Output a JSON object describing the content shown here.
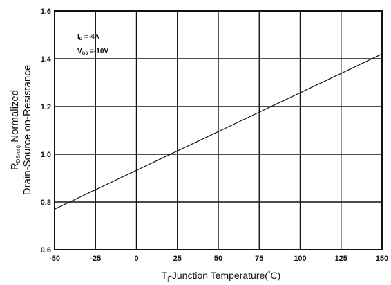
{
  "chart_data": {
    "type": "line",
    "xlabel_prefix": "T",
    "xlabel_subscript": "j",
    "xlabel_rest": "-Junction Temperature(",
    "xlabel_degree": "°",
    "xlabel_unit": "C)",
    "ylabel_line1_prefix": "R",
    "ylabel_line1_subscript": "DS(on)",
    "ylabel_line1_rest": " Normalized",
    "ylabel_line2": "Drain-Source on-Resistance",
    "xlim": [
      -50,
      150
    ],
    "ylim": [
      0.6,
      1.6
    ],
    "x_ticks": [
      -50,
      -25,
      0,
      25,
      50,
      75,
      100,
      125,
      150
    ],
    "y_ticks": [
      0.6,
      0.8,
      1.0,
      1.2,
      1.4,
      1.6
    ],
    "x_tick_labels": [
      "-50",
      "-25",
      "0",
      "25",
      "50",
      "75",
      "100",
      "125",
      "150"
    ],
    "y_tick_labels": [
      "0.6",
      "0.8",
      "1.0",
      "1.2",
      "1.4",
      "1.6"
    ],
    "grid": true,
    "annotations": [
      {
        "prefix": "I",
        "sub": "D",
        "rest": " =-4A"
      },
      {
        "prefix": "V",
        "sub": "GS",
        "rest": " =-10V"
      }
    ],
    "series": [
      {
        "x": [
          -50,
          150
        ],
        "y": [
          0.77,
          1.42
        ]
      }
    ]
  }
}
